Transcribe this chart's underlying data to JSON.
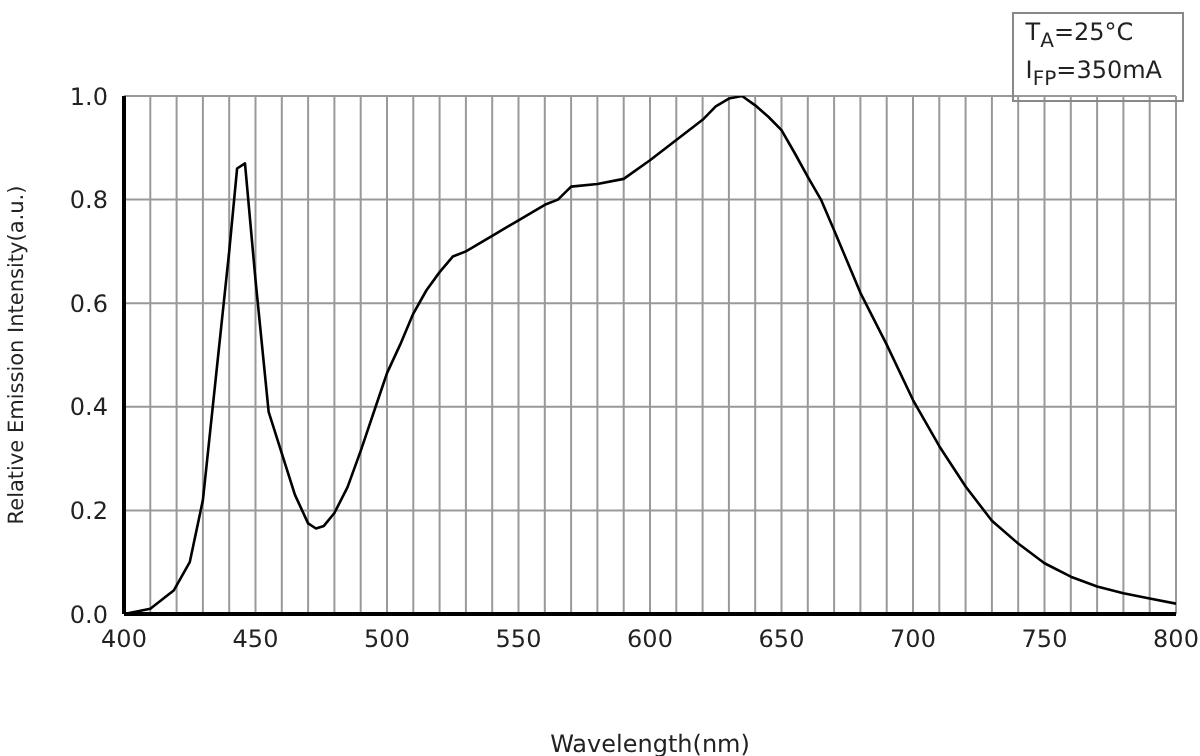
{
  "chart_data": {
    "type": "line",
    "xlabel": "Wavelength(nm)",
    "ylabel": "Relative Emission Intensity(a.u.)",
    "annotations": [
      "T$_{A}$=25°C",
      "I$_{FP}$=350mA"
    ],
    "x": [
      400,
      410,
      419,
      425,
      430,
      435,
      440,
      443,
      446,
      450,
      455,
      460,
      465,
      470,
      473,
      476,
      480,
      485,
      490,
      495,
      500,
      505,
      510,
      515,
      520,
      525,
      530,
      540,
      550,
      560,
      565,
      570,
      580,
      590,
      600,
      610,
      620,
      625,
      630,
      635,
      640,
      645,
      650,
      655,
      660,
      665,
      670,
      680,
      690,
      700,
      710,
      720,
      730,
      740,
      750,
      760,
      770,
      780,
      790,
      800
    ],
    "series": [
      {
        "color": "#000000",
        "values": [
          0.0,
          0.01,
          0.046,
          0.1,
          0.22,
          0.46,
          0.7,
          0.86,
          0.87,
          0.645,
          0.39,
          0.31,
          0.23,
          0.175,
          0.165,
          0.17,
          0.195,
          0.245,
          0.315,
          0.39,
          0.465,
          0.52,
          0.58,
          0.625,
          0.66,
          0.69,
          0.7,
          0.73,
          0.76,
          0.79,
          0.8,
          0.825,
          0.83,
          0.84,
          0.876,
          0.915,
          0.954,
          0.98,
          0.995,
          1.0,
          0.982,
          0.96,
          0.934,
          0.89,
          0.844,
          0.8,
          0.741,
          0.62,
          0.52,
          0.413,
          0.324,
          0.246,
          0.18,
          0.136,
          0.098,
          0.072,
          0.053,
          0.04,
          0.03,
          0.02
        ]
      }
    ],
    "xlim": [
      400,
      800
    ],
    "xticks": [
      400,
      {
        "value": 410,
        "label": null
      },
      {
        "value": 420,
        "label": null
      },
      {
        "value": 430,
        "label": null
      },
      {
        "value": 440,
        "label": null
      },
      450,
      {
        "value": 460,
        "label": null
      },
      {
        "value": 470,
        "label": null
      },
      {
        "value": 480,
        "label": null
      },
      {
        "value": 490,
        "label": null
      },
      500,
      {
        "value": 510,
        "label": null
      },
      {
        "value": 520,
        "label": null
      },
      {
        "value": 530,
        "label": null
      },
      {
        "value": 540,
        "label": null
      },
      550,
      {
        "value": 560,
        "label": null
      },
      {
        "value": 570,
        "label": null
      },
      {
        "value": 580,
        "label": null
      },
      {
        "value": 590,
        "label": null
      },
      600,
      {
        "value": 610,
        "label": null
      },
      {
        "value": 620,
        "label": null
      },
      {
        "value": 630,
        "label": null
      },
      {
        "value": 640,
        "label": null
      },
      650,
      {
        "value": 660,
        "label": null
      },
      {
        "value": 670,
        "label": null
      },
      {
        "value": 680,
        "label": null
      },
      {
        "value": 690,
        "label": null
      },
      700,
      {
        "value": 710,
        "label": null
      },
      {
        "value": 720,
        "label": null
      },
      {
        "value": 730,
        "label": null
      },
      {
        "value": 740,
        "label": null
      },
      750,
      {
        "value": 760,
        "label": null
      },
      {
        "value": 770,
        "label": null
      },
      {
        "value": 780,
        "label": null
      },
      {
        "value": 790,
        "label": null
      },
      800
    ],
    "ylim": [
      0,
      1
    ],
    "yticks": [
      {
        "value": 0,
        "label": "0.0"
      },
      {
        "value": 0.2,
        "label": "0.2"
      },
      {
        "value": 0.4,
        "label": "0.4"
      },
      {
        "value": 0.6,
        "label": "0.6"
      },
      {
        "value": 0.8,
        "label": "0.8"
      },
      {
        "value": 1,
        "label": "1.0"
      }
    ],
    "grid": true,
    "marker": "none",
    "line_style": "solid"
  }
}
